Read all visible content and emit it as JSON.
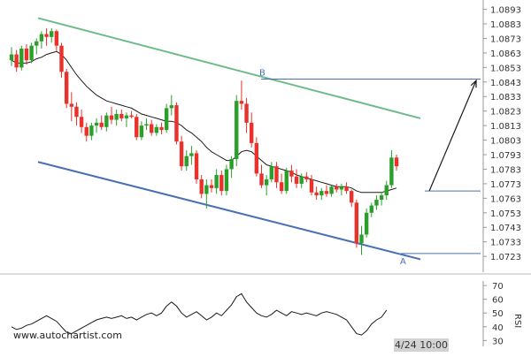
{
  "site": {
    "watermark": "www.autochartist.com"
  },
  "colors": {
    "bull": "#2aa02a",
    "bear": "#e8322b",
    "moving_average": "#1a1a1a",
    "upper_channel": "#6dbb8a",
    "lower_channel": "#4a6fb5",
    "level_line": "#4a6fb5",
    "forecast_arrow": "#1a1a1a",
    "rsi_line": "#1a1a1a"
  },
  "chart_data": [
    {
      "type": "candlestick",
      "title": "",
      "y_axis_side": "right",
      "ylim": [
        1.0717,
        1.0897
      ],
      "y_ticks": [
        "1.0893",
        "1.0883",
        "1.0873",
        "1.0863",
        "1.0853",
        "1.0843",
        "1.0833",
        "1.0823",
        "1.0813",
        "1.0803",
        "1.0793",
        "1.0783",
        "1.0773",
        "1.0763",
        "1.0753",
        "1.0743",
        "1.0733",
        "1.0723"
      ],
      "x_label": "4/24 10:00",
      "x_label_index": 107,
      "last_index": 112,
      "candles": [
        [
          1.0858,
          1.0867,
          1.0854,
          1.0862
        ],
        [
          1.0862,
          1.0865,
          1.085,
          1.0853
        ],
        [
          1.0853,
          1.0868,
          1.0851,
          1.0866
        ],
        [
          1.0866,
          1.0869,
          1.0855,
          1.0858
        ],
        [
          1.0858,
          1.087,
          1.0856,
          1.0868
        ],
        [
          1.0868,
          1.0873,
          1.0862,
          1.0871
        ],
        [
          1.0871,
          1.0878,
          1.0866,
          1.0876
        ],
        [
          1.0876,
          1.088,
          1.0868,
          1.0874
        ],
        [
          1.0874,
          1.088,
          1.087,
          1.0878
        ],
        [
          1.0878,
          1.0879,
          1.0864,
          1.0868
        ],
        [
          1.0868,
          1.087,
          1.0846,
          1.085
        ],
        [
          1.085,
          1.0852,
          1.0825,
          1.0828
        ],
        [
          1.0828,
          1.0836,
          1.0816,
          1.0826
        ],
        [
          1.0826,
          1.0829,
          1.0813,
          1.0819
        ],
        [
          1.0819,
          1.0824,
          1.0808,
          1.0812
        ],
        [
          1.0812,
          1.0815,
          1.0802,
          1.0806
        ],
        [
          1.0806,
          1.0815,
          1.0803,
          1.0813
        ],
        [
          1.0813,
          1.0818,
          1.0808,
          1.0815
        ],
        [
          1.0815,
          1.082,
          1.081,
          1.0812
        ],
        [
          1.0812,
          1.0822,
          1.0809,
          1.082
        ],
        [
          1.082,
          1.0826,
          1.0814,
          1.0817
        ],
        [
          1.0817,
          1.0824,
          1.0813,
          1.0821
        ],
        [
          1.0821,
          1.0824,
          1.0816,
          1.0818
        ],
        [
          1.0818,
          1.0822,
          1.0812,
          1.082
        ],
        [
          1.082,
          1.0823,
          1.0818,
          1.0819
        ],
        [
          1.0819,
          1.0821,
          1.0803,
          1.0805
        ],
        [
          1.0805,
          1.0816,
          1.0803,
          1.0813
        ],
        [
          1.0813,
          1.0818,
          1.081,
          1.0814
        ],
        [
          1.0814,
          1.0817,
          1.0806,
          1.0808
        ],
        [
          1.0808,
          1.0814,
          1.0806,
          1.0812
        ],
        [
          1.0812,
          1.0815,
          1.0807,
          1.081
        ],
        [
          1.081,
          1.0828,
          1.0808,
          1.0825
        ],
        [
          1.0825,
          1.0834,
          1.082,
          1.0827
        ],
        [
          1.0827,
          1.0829,
          1.08,
          1.0802
        ],
        [
          1.0802,
          1.0806,
          1.0782,
          1.0785
        ],
        [
          1.0785,
          1.0796,
          1.0782,
          1.0792
        ],
        [
          1.0792,
          1.0799,
          1.0786,
          1.0794
        ],
        [
          1.0794,
          1.0796,
          1.0773,
          1.0776
        ],
        [
          1.0776,
          1.0779,
          1.0763,
          1.0766
        ],
        [
          1.0766,
          1.0776,
          1.0756,
          1.0772
        ],
        [
          1.0772,
          1.0776,
          1.0767,
          1.077
        ],
        [
          1.077,
          1.0783,
          1.0766,
          1.0779
        ],
        [
          1.0779,
          1.0782,
          1.0765,
          1.0768
        ],
        [
          1.0768,
          1.0786,
          1.0765,
          1.0783
        ],
        [
          1.0783,
          1.0792,
          1.0777,
          1.079
        ],
        [
          1.079,
          1.0834,
          1.0785,
          1.083
        ],
        [
          1.083,
          1.0844,
          1.0824,
          1.0828
        ],
        [
          1.0828,
          1.0832,
          1.0808,
          1.0815
        ],
        [
          1.0815,
          1.0822,
          1.0798,
          1.0801
        ],
        [
          1.0801,
          1.0805,
          1.0778,
          1.078
        ],
        [
          1.078,
          1.0786,
          1.077,
          1.0772
        ],
        [
          1.0772,
          1.0779,
          1.0765,
          1.0776
        ],
        [
          1.0776,
          1.0788,
          1.0774,
          1.0785
        ],
        [
          1.0785,
          1.0788,
          1.077,
          1.0774
        ],
        [
          1.0774,
          1.078,
          1.0766,
          1.0768
        ],
        [
          1.0768,
          1.0784,
          1.0766,
          1.0782
        ],
        [
          1.0782,
          1.0786,
          1.0774,
          1.0778
        ],
        [
          1.0778,
          1.0783,
          1.077,
          1.0773
        ],
        [
          1.0773,
          1.078,
          1.077,
          1.0778
        ],
        [
          1.0778,
          1.0781,
          1.0774,
          1.0776
        ],
        [
          1.0776,
          1.0779,
          1.0765,
          1.0767
        ],
        [
          1.0767,
          1.0771,
          1.0762,
          1.0765
        ],
        [
          1.0765,
          1.077,
          1.0762,
          1.0768
        ],
        [
          1.0768,
          1.0772,
          1.0764,
          1.0766
        ],
        [
          1.0766,
          1.0772,
          1.0764,
          1.0771
        ],
        [
          1.0771,
          1.0773,
          1.0767,
          1.0769
        ],
        [
          1.0769,
          1.0773,
          1.0765,
          1.0771
        ],
        [
          1.0771,
          1.0774,
          1.0766,
          1.0768
        ],
        [
          1.0768,
          1.0769,
          1.0757,
          1.076
        ],
        [
          1.076,
          1.0762,
          1.0729,
          1.0732
        ],
        [
          1.0732,
          1.0744,
          1.0724,
          1.0738
        ],
        [
          1.0738,
          1.0756,
          1.0736,
          1.0753
        ],
        [
          1.0753,
          1.076,
          1.075,
          1.0758
        ],
        [
          1.0758,
          1.0765,
          1.0755,
          1.0762
        ],
        [
          1.0762,
          1.0767,
          1.0758,
          1.0765
        ],
        [
          1.0765,
          1.0775,
          1.0762,
          1.0772
        ],
        [
          1.0772,
          1.0796,
          1.077,
          1.0791
        ],
        [
          1.0791,
          1.0793,
          1.0782,
          1.0785
        ]
      ],
      "candle_index_offset": 0,
      "moving_average": [
        1.0858,
        1.0856,
        1.0856,
        1.0856,
        1.0857,
        1.0859,
        1.086,
        1.0862,
        1.0863,
        1.0864,
        1.0862,
        1.0858,
        1.0853,
        1.0848,
        1.0844,
        1.084,
        1.0837,
        1.0834,
        1.0832,
        1.083,
        1.0829,
        1.0828,
        1.0827,
        1.0826,
        1.0825,
        1.0823,
        1.0821,
        1.082,
        1.0819,
        1.0818,
        1.0817,
        1.0816,
        1.0816,
        1.0815,
        1.0813,
        1.081,
        1.0808,
        1.0805,
        1.0802,
        1.0798,
        1.0795,
        1.0793,
        1.0791,
        1.0789,
        1.0789,
        1.0792,
        1.0795,
        1.0796,
        1.0795,
        1.0792,
        1.0789,
        1.0786,
        1.0785,
        1.0784,
        1.0783,
        1.0782,
        1.0781,
        1.0779,
        1.0778,
        1.0777,
        1.0776,
        1.0775,
        1.0774,
        1.0773,
        1.0772,
        1.0771,
        1.0771,
        1.0771,
        1.077,
        1.0768,
        1.0767,
        1.0767,
        1.0767,
        1.0767,
        1.0767,
        1.0768,
        1.0769,
        1.077
      ],
      "upper_channel": {
        "x": [
          0,
          77
        ],
        "y": [
          1.0887,
          1.0818
        ]
      },
      "lower_channel": {
        "x": [
          0,
          77
        ],
        "y": [
          1.0788,
          1.0721
        ]
      },
      "level_B": {
        "label": "B",
        "value": 1.0845,
        "x_start": 52
      },
      "level_A": {
        "label": "A",
        "value": 1.0725,
        "x_start": 71
      },
      "level_current": {
        "value": 1.0768,
        "x_start": 77
      },
      "forecast": {
        "from": [
          77,
          1.0768
        ],
        "to": [
          87,
          1.0844
        ]
      }
    },
    {
      "type": "line",
      "title": "",
      "label": "RSI",
      "ylim": [
        27,
        72
      ],
      "y_ticks": [
        70,
        60,
        50,
        40,
        30
      ],
      "values": [
        40,
        38,
        39,
        41,
        42,
        44,
        46,
        48,
        46,
        44,
        40,
        36,
        35,
        37,
        39,
        41,
        43,
        45,
        46,
        47,
        46,
        47,
        48,
        46,
        47,
        45,
        47,
        49,
        50,
        48,
        50,
        55,
        58,
        55,
        50,
        47,
        49,
        51,
        48,
        45,
        47,
        50,
        48,
        52,
        56,
        62,
        64,
        58,
        54,
        50,
        48,
        47,
        49,
        52,
        50,
        48,
        51,
        50,
        49,
        50,
        49,
        48,
        50,
        51,
        50,
        49,
        47,
        45,
        40,
        35,
        34,
        37,
        42,
        45,
        47,
        52
      ]
    }
  ]
}
